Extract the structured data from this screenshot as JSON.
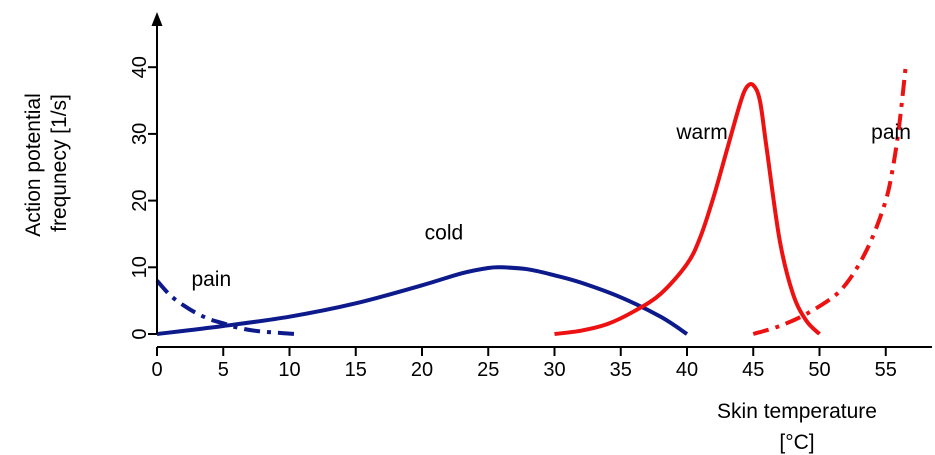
{
  "chart_data": {
    "type": "line",
    "title": "",
    "xlabel_line1": "Skin temperature",
    "xlabel_line2": "[°C]",
    "ylabel_line1": "Action potential",
    "ylabel_line2": "frequnecy [1/s]",
    "xlim": [
      0,
      58
    ],
    "ylim": [
      0,
      45
    ],
    "x_ticks": [
      0,
      5,
      10,
      15,
      20,
      25,
      30,
      35,
      40,
      45,
      50,
      55
    ],
    "y_ticks": [
      0,
      10,
      20,
      30,
      40
    ],
    "grid": false,
    "legend": "none",
    "series": [
      {
        "name": "cold",
        "color": "#0d1a8c",
        "style": "solid",
        "x": [
          0,
          5,
          10,
          15,
          20,
          23,
          25,
          26,
          28,
          30,
          32,
          35,
          38,
          40
        ],
        "y": [
          0,
          1.2,
          2.6,
          4.6,
          7.3,
          9.1,
          9.9,
          10,
          9.7,
          8.8,
          7.7,
          5.5,
          2.6,
          0
        ]
      },
      {
        "name": "warm",
        "color": "#ee1111",
        "style": "solid",
        "x": [
          30,
          32,
          34,
          36,
          38,
          40,
          41,
          42,
          43,
          44,
          44.5,
          45,
          45.5,
          46,
          47,
          48,
          49,
          50
        ],
        "y": [
          0,
          0.5,
          1.5,
          3.4,
          6.0,
          10.5,
          14.5,
          20.5,
          27.5,
          34.5,
          37,
          37.3,
          35,
          28,
          14,
          6,
          2,
          0
        ]
      },
      {
        "name": "pain",
        "color": "#0d1a8c",
        "style": "dashdot",
        "x": [
          0,
          1,
          2,
          3,
          4,
          5,
          6,
          7,
          8,
          9,
          10,
          10.8
        ],
        "y": [
          8,
          5.8,
          4.3,
          3.1,
          2.2,
          1.6,
          1.0,
          0.6,
          0.35,
          0.2,
          0.05,
          0
        ]
      },
      {
        "name": "pain",
        "color": "#ee1111",
        "style": "dashdot",
        "x": [
          45,
          47,
          49,
          51,
          52,
          53,
          54,
          55,
          55.5,
          56,
          56.5
        ],
        "y": [
          0,
          1.2,
          3,
          5.5,
          7.5,
          10.5,
          14.5,
          20,
          24.5,
          31,
          40
        ]
      }
    ],
    "annotations": [
      {
        "text": "cold",
        "x": 20.2,
        "y": 14.2
      },
      {
        "text": "warm",
        "x": 39.2,
        "y": 29.2
      },
      {
        "text": "pain",
        "x": 2.6,
        "y": 7.2
      },
      {
        "text": "pain",
        "x": 53.9,
        "y": 29.2
      }
    ]
  }
}
